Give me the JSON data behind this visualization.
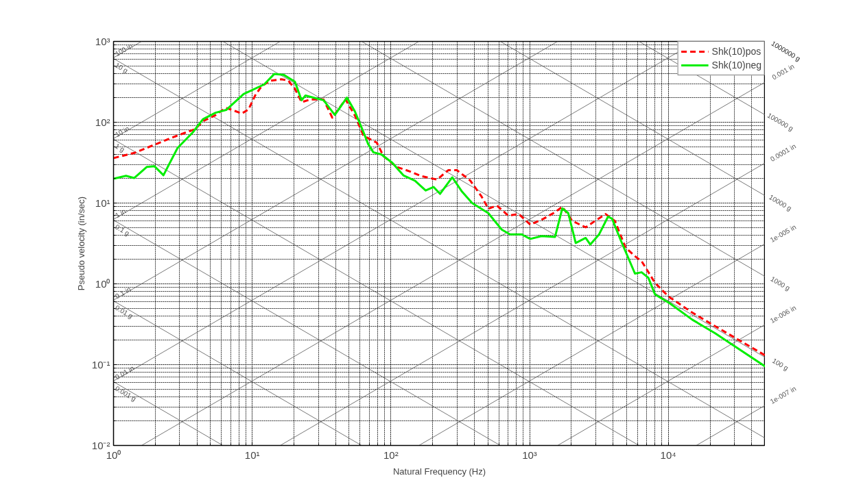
{
  "chart_data": {
    "type": "line",
    "xlabel": "Natural Frequency (Hz)",
    "ylabel": "Pseudo velocity (in/sec)",
    "log": "xy",
    "grid": true,
    "legend": "top right",
    "xlim": [
      1,
      50000
    ],
    "ylim": [
      0.01,
      1000
    ],
    "xticks": [
      {
        "value": 1,
        "label": "10⁰"
      },
      {
        "value": 10,
        "label": "10¹"
      },
      {
        "value": 100,
        "label": "10²"
      },
      {
        "value": 1000,
        "label": "10³"
      },
      {
        "value": 10000,
        "label": "10⁴"
      }
    ],
    "yticks": [
      {
        "value": 0.01,
        "label": "10⁻²"
      },
      {
        "value": 0.1,
        "label": "10⁻¹"
      },
      {
        "value": 1,
        "label": "10⁰"
      },
      {
        "value": 10,
        "label": "10¹"
      },
      {
        "value": 100,
        "label": "10²"
      },
      {
        "value": 1000,
        "label": "10³"
      }
    ],
    "annotations": [
      "1000000 g"
    ],
    "series": [
      {
        "name": "100 in",
        "color": "#555555",
        "x": [
          1,
          1.592
        ],
        "values": [
          628.3,
          1000
        ]
      },
      {
        "name": "10 in",
        "color": "#555555",
        "x": [
          1,
          15.92
        ],
        "values": [
          62.83,
          1000
        ]
      },
      {
        "name": "1 in",
        "color": "#555555",
        "x": [
          1,
          159.2
        ],
        "values": [
          6.283,
          1000
        ]
      },
      {
        "name": "0.1 in",
        "color": "#555555",
        "x": [
          1,
          1592
        ],
        "values": [
          0.6283,
          1000
        ]
      },
      {
        "name": "0.01 in",
        "color": "#555555",
        "x": [
          1,
          15915
        ],
        "values": [
          0.06283,
          1000
        ]
      },
      {
        "name": "0.001 in",
        "color": "#555555",
        "x": [
          1.592,
          50000
        ],
        "values": [
          0.01,
          314.2
        ]
      },
      {
        "name": "0.0001 in",
        "color": "#555555",
        "x": [
          15.92,
          50000
        ],
        "values": [
          0.01,
          31.42
        ]
      },
      {
        "name": "1e-005 in",
        "color": "#555555",
        "x": [
          159.2,
          50000
        ],
        "values": [
          0.01,
          3.142
        ]
      },
      {
        "name": "1e-006 in",
        "color": "#555555",
        "x": [
          1592,
          50000
        ],
        "values": [
          0.01,
          0.3142
        ]
      },
      {
        "name": "1e-007 in",
        "color": "#555555",
        "x": [
          15915,
          50000
        ],
        "values": [
          0.01,
          0.03142
        ]
      },
      {
        "name": "0.001 g",
        "color": "#555555",
        "x": [
          1,
          6.145
        ],
        "values": [
          0.06145,
          0.01
        ]
      },
      {
        "name": "0.01 g",
        "color": "#555555",
        "x": [
          1,
          61.45
        ],
        "values": [
          0.6145,
          0.01
        ]
      },
      {
        "name": "0.1 g",
        "color": "#555555",
        "x": [
          1,
          614.5
        ],
        "values": [
          6.145,
          0.01
        ]
      },
      {
        "name": "1 g",
        "color": "#555555",
        "x": [
          1,
          6145
        ],
        "values": [
          61.45,
          0.01
        ]
      },
      {
        "name": "10 g",
        "color": "#555555",
        "x": [
          1,
          50000
        ],
        "values": [
          614.5,
          0.01229
        ]
      },
      {
        "name": "100 g",
        "color": "#555555",
        "x": [
          6.145,
          50000
        ],
        "values": [
          1000,
          0.1229
        ]
      },
      {
        "name": "1000 g",
        "color": "#555555",
        "x": [
          61.45,
          50000
        ],
        "values": [
          1000,
          1.229
        ]
      },
      {
        "name": "10000 g",
        "color": "#555555",
        "x": [
          614.5,
          50000
        ],
        "values": [
          1000,
          12.29
        ]
      },
      {
        "name": "100000 g",
        "color": "#555555",
        "x": [
          6145,
          50000
        ],
        "values": [
          1000,
          122.9
        ]
      },
      {
        "name": "Shk(10)pos",
        "color": "#ff0000",
        "line_style": "dashed",
        "x": [
          1,
          1.43,
          1.99,
          2.86,
          3.86,
          4.46,
          5.38,
          6.43,
          7.5,
          8.4,
          9.4,
          10.5,
          11.7,
          13.5,
          16.3,
          18.2,
          20.3,
          22.7,
          26.2,
          32.7,
          37.8,
          47.1,
          55,
          63.5,
          79,
          88.5,
          110,
          138,
          166,
          215,
          259,
          299,
          373,
          451,
          504,
          581,
          701,
          837,
          1011,
          1262,
          1524,
          1722,
          2033,
          2535,
          2960,
          3532,
          4122,
          4921,
          5754,
          6427,
          7178,
          8017,
          10000,
          14900,
          21700,
          50000
        ],
        "values": [
          36,
          42,
          53,
          68,
          82,
          104,
          121,
          151,
          138,
          128,
          144,
          215,
          280,
          327,
          340,
          327,
          260,
          177,
          191,
          191,
          114,
          191,
          121,
          68,
          56,
          38,
          28,
          24.5,
          21.5,
          19.5,
          25.5,
          25.5,
          19,
          12,
          8.5,
          9.3,
          7,
          7.3,
          5.4,
          6.4,
          7.7,
          9,
          6,
          5,
          6,
          7.3,
          6,
          2.8,
          2.2,
          1.9,
          1.4,
          1.03,
          0.7,
          0.44,
          0.3,
          0.13
        ]
      },
      {
        "name": "Shk(10)neg",
        "color": "#00ee00",
        "line_style": "solid",
        "x": [
          1,
          1.23,
          1.41,
          1.74,
          1.97,
          2.29,
          2.89,
          3.73,
          4.41,
          5.44,
          6.49,
          8.66,
          12.2,
          14.4,
          16.8,
          20.3,
          22.7,
          24.2,
          32.7,
          39.4,
          48.2,
          55,
          63.5,
          68.4,
          74.7,
          85.3,
          102,
          123,
          149,
          178,
          203,
          226,
          277,
          323,
          385,
          504,
          629,
          722,
          875,
          1011,
          1219,
          1524,
          1722,
          1900,
          2150,
          2535,
          2740,
          3170,
          3680,
          3930,
          4560,
          5750,
          6420,
          7180,
          8020,
          10300,
          14900,
          21700,
          50000
        ],
        "values": [
          20,
          21.7,
          20.4,
          28,
          28.6,
          22.1,
          47.8,
          75,
          109,
          131,
          142,
          223,
          294,
          395,
          387,
          318,
          187,
          214,
          187,
          123,
          202,
          136,
          75,
          54,
          42.5,
          40,
          31.6,
          22,
          18.9,
          14.3,
          15.8,
          13,
          20.8,
          14.1,
          10,
          7.5,
          4.7,
          4.1,
          4.1,
          3.6,
          3.9,
          3.8,
          8.6,
          7.5,
          3.2,
          3.7,
          3.07,
          4.1,
          6.8,
          6.4,
          3.4,
          1.34,
          1.39,
          1.19,
          0.74,
          0.57,
          0.36,
          0.245,
          0.095
        ]
      }
    ]
  }
}
